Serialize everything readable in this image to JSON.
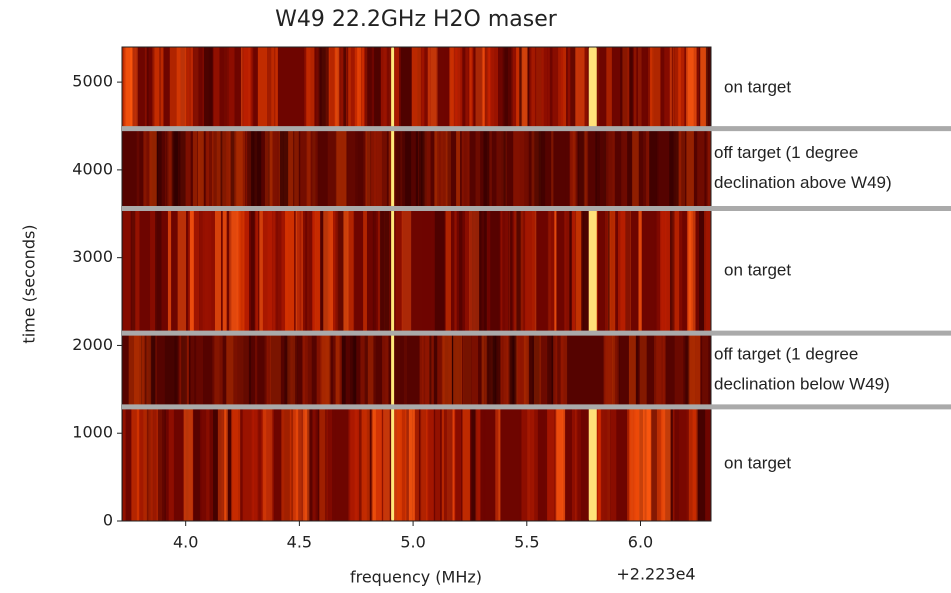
{
  "chart_data": {
    "type": "heatmap",
    "title": "W49 22.2GHz H2O maser",
    "xlabel": "frequency (MHz)",
    "ylabel": "time (seconds)",
    "x_offset": "+2.223e4",
    "xlim": [
      3.72,
      6.31
    ],
    "ylim": [
      0,
      5400
    ],
    "xticks": [
      {
        "value": 4,
        "label": "4.0"
      },
      4.5,
      {
        "value": 5,
        "label": "5.0"
      },
      5.5,
      {
        "value": 6,
        "label": "6.0"
      }
    ],
    "yticks": [
      0,
      1000,
      2000,
      3000,
      4000,
      5000
    ],
    "colormap": "hot",
    "separators": {
      "color": "#aaaaaa",
      "values": [
        1300,
        2140,
        3560,
        4470
      ]
    },
    "segments": [
      {
        "label": [
          "on target"
        ],
        "on": true
      },
      {
        "label": [
          "off target (1 degree",
          "declination below W49)"
        ],
        "on": false
      },
      {
        "label": [
          "on target"
        ],
        "on": true
      },
      {
        "label": [
          "off target (1 degree",
          "declination above W49)"
        ],
        "on": false
      },
      {
        "label": [
          "on target"
        ],
        "on": true
      }
    ],
    "spectral_lines": [
      {
        "x": 4.91,
        "color": "#ffe97a",
        "on_only": false
      },
      {
        "x": 5.79,
        "color": "#ffe27a",
        "on_only": true
      }
    ]
  }
}
